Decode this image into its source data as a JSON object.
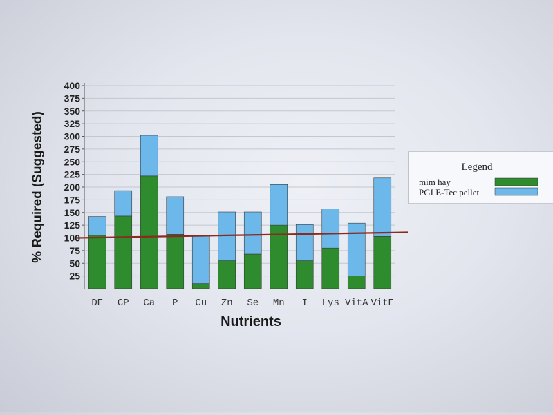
{
  "chart_data": {
    "type": "bar",
    "stacked": true,
    "categories": [
      "DE",
      "CP",
      "Ca",
      "P",
      "Cu",
      "Zn",
      "Se",
      "Mn",
      "I",
      "Lys",
      "VitA",
      "VitE"
    ],
    "series": [
      {
        "name": "mim hay",
        "color": "#2e8b2e",
        "values": [
          105,
          143,
          222,
          107,
          10,
          55,
          68,
          125,
          55,
          80,
          25,
          103
        ]
      },
      {
        "name": "PGI E-Tec pellet",
        "color": "#6cb8ea",
        "values": [
          37,
          50,
          80,
          74,
          95,
          96,
          83,
          80,
          71,
          77,
          104,
          115
        ]
      }
    ],
    "reference_line": {
      "value": 100,
      "color": "#8b2a1e"
    },
    "ylabel": "% Required (Suggested)",
    "xlabel": "Nutrients",
    "ylim": [
      0,
      400
    ],
    "yticks": [
      25,
      50,
      75,
      100,
      125,
      150,
      175,
      200,
      225,
      250,
      275,
      300,
      325,
      350,
      375,
      400
    ],
    "grid": true,
    "legend": {
      "title": "Legend",
      "position": "right"
    }
  }
}
